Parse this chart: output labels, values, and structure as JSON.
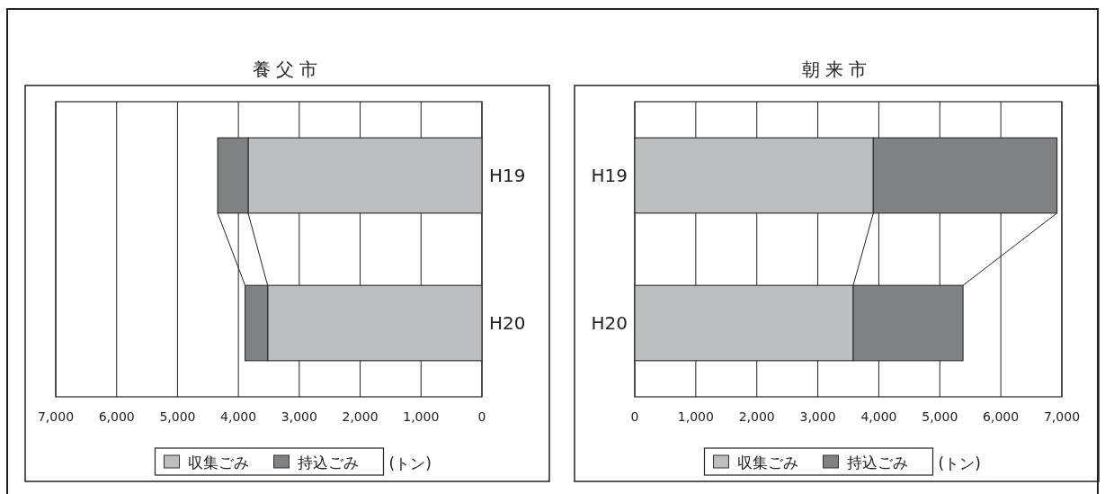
{
  "chart_data": [
    {
      "type": "bar",
      "orientation": "horizontal",
      "stacked": true,
      "title": "養父市",
      "categories": [
        "H19",
        "H20"
      ],
      "series": [
        {
          "name": "収集ごみ",
          "color": "#bdbec0",
          "values": [
            3840,
            3520
          ]
        },
        {
          "name": "持込ごみ",
          "color": "#808183",
          "values": [
            500,
            370
          ]
        }
      ],
      "xlim": [
        7000,
        0
      ],
      "xticks": [
        {
          "value": 7000,
          "label": "7,000"
        },
        {
          "value": 6000,
          "label": "6,000"
        },
        {
          "value": 5000,
          "label": "5,000"
        },
        {
          "value": 4000,
          "label": "4,000"
        },
        {
          "value": 3000,
          "label": "3,000"
        },
        {
          "value": 2000,
          "label": "2,000"
        },
        {
          "value": 1000,
          "label": "1,000"
        },
        0
      ],
      "grid": "x",
      "legend": "bottom",
      "xlabel": "(トン)"
    },
    {
      "type": "bar",
      "orientation": "horizontal",
      "stacked": true,
      "title": "朝来市",
      "categories": [
        "H19",
        "H20"
      ],
      "series": [
        {
          "name": "収集ごみ",
          "color": "#bdbec0",
          "values": [
            3910,
            3580
          ]
        },
        {
          "name": "持込ごみ",
          "color": "#808183",
          "values": [
            3010,
            1800
          ]
        }
      ],
      "xlim": [
        0,
        7000
      ],
      "xticks": [
        0,
        {
          "value": 1000,
          "label": "1,000"
        },
        {
          "value": 2000,
          "label": "2,000"
        },
        {
          "value": 3000,
          "label": "3,000"
        },
        {
          "value": 4000,
          "label": "4,000"
        },
        {
          "value": 5000,
          "label": "5,000"
        },
        {
          "value": 6000,
          "label": "6,000"
        },
        {
          "value": 7000,
          "label": "7,000"
        }
      ],
      "grid": "x",
      "legend": "bottom",
      "xlabel": "(トン)"
    }
  ]
}
